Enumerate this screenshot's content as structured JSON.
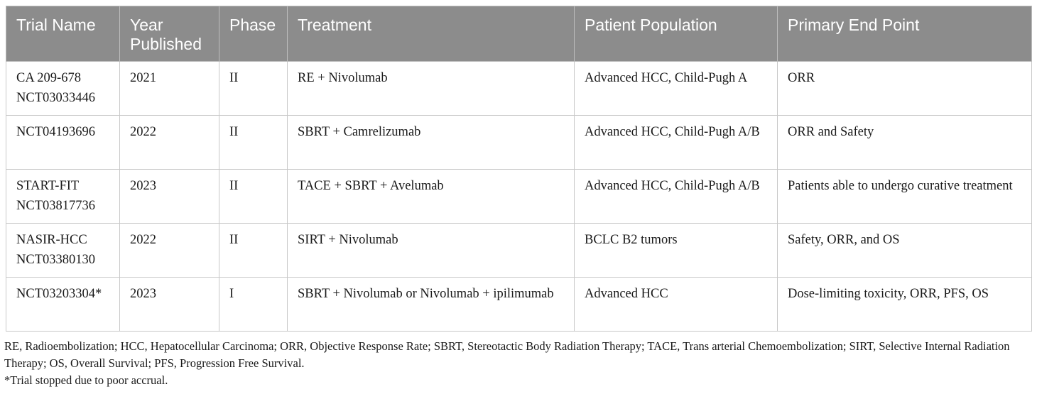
{
  "table": {
    "headers": [
      "Trial Name",
      "Year Published",
      "Phase",
      "Treatment",
      "Patient Population",
      "Primary End Point"
    ],
    "rows": [
      [
        "CA 209-678 NCT03033446",
        "2021",
        "II",
        "RE + Nivolumab",
        "Advanced HCC, Child-Pugh A",
        "ORR"
      ],
      [
        "NCT04193696",
        "2022",
        "II",
        "SBRT + Camrelizumab",
        "Advanced HCC, Child-Pugh A/B",
        "ORR and Safety"
      ],
      [
        "START-FIT NCT03817736",
        "2023",
        "II",
        "TACE + SBRT + Avelumab",
        "Advanced HCC, Child-Pugh A/B",
        "Patients able to undergo curative treatment"
      ],
      [
        "NASIR-HCC NCT03380130",
        "2022",
        "II",
        "SIRT + Nivolumab",
        "BCLC B2 tumors",
        "Safety, ORR, and OS"
      ],
      [
        "NCT03203304*",
        "2023",
        "I",
        "SBRT + Nivolumab or Nivolumab + ipilimumab",
        "Advanced HCC",
        "Dose-limiting toxicity, ORR, PFS, OS"
      ]
    ]
  },
  "footnotes": {
    "abbreviations": "RE, Radioembolization; HCC, Hepatocellular Carcinoma; ORR, Objective Response Rate; SBRT, Stereotactic Body Radiation Therapy; TACE, Trans arterial Chemoembolization; SIRT, Selective Internal Radiation Therapy; OS, Overall Survival; PFS, Progression Free Survival.",
    "asterisk": "*Trial stopped due to poor accrual."
  }
}
